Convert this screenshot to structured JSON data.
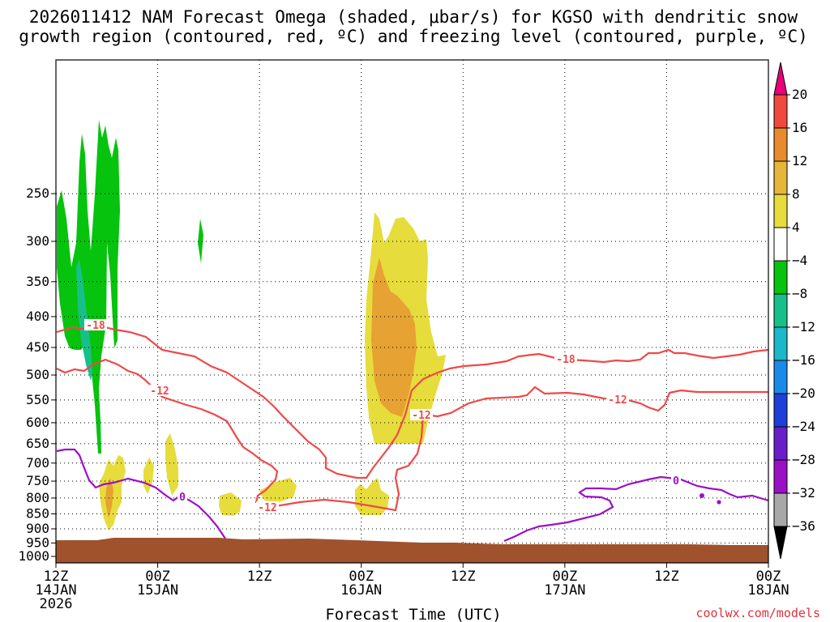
{
  "chart_data": {
    "type": "heatmap",
    "title_line1": "2026011412 NAM Forecast Omega (shaded, μbar/s) for KGSO with dendritic snow",
    "title_line2": "growth region (contoured, red, ºC) and freezing level (contoured, purple, ºC)",
    "xlabel": "Forecast Time (UTC)",
    "credit": "coolwx.com/models",
    "x_hours_range": [
      0,
      84
    ],
    "y_range_hpa": [
      1025,
      150
    ],
    "y_ticks": [
      "250",
      "300",
      "350",
      "400",
      "450",
      "500",
      "550",
      "600",
      "650",
      "700",
      "750",
      "800",
      "850",
      "900",
      "950",
      "1000"
    ],
    "x_ticks": [
      {
        "hour": 0,
        "line1": "12Z",
        "line2": "14JAN",
        "line3": "2026"
      },
      {
        "hour": 12,
        "line1": "00Z",
        "line2": "15JAN"
      },
      {
        "hour": 24,
        "line1": "12Z",
        "line2": ""
      },
      {
        "hour": 36,
        "line1": "00Z",
        "line2": "16JAN"
      },
      {
        "hour": 48,
        "line1": "12Z",
        "line2": ""
      },
      {
        "hour": 60,
        "line1": "00Z",
        "line2": "17JAN"
      },
      {
        "hour": 72,
        "line1": "12Z",
        "line2": ""
      },
      {
        "hour": 84,
        "line1": "00Z",
        "line2": "18JAN"
      }
    ],
    "colorbar": {
      "labels": [
        "20",
        "16",
        "12",
        "8",
        "4",
        "−4",
        "−8",
        "−12",
        "−16",
        "−20",
        "−24",
        "−28",
        "−32",
        "−36"
      ],
      "colors": [
        "#e8007a",
        "#f04a3c",
        "#e98a2e",
        "#e6b53a",
        "#e6dc3c",
        "#ffffff",
        "#06c30e",
        "#18c089",
        "#1ab8c8",
        "#1a8ae8",
        "#1e3fd8",
        "#6a1ec8",
        "#9a10c4",
        "#a8a8a8",
        "#000000"
      ]
    },
    "contour_labels": {
      "red": [
        "-18",
        "-12",
        "-12",
        "-18",
        "-12",
        "-12"
      ],
      "purple": [
        "0",
        "0"
      ]
    },
    "colors": {
      "terrain": "#a0522d",
      "red_contour": "#f04848",
      "purple_contour": "#9b10c8",
      "green": "#06c30e",
      "teal": "#18c089",
      "yellow": "#e6dc3c",
      "orange": "#e6a232"
    }
  }
}
